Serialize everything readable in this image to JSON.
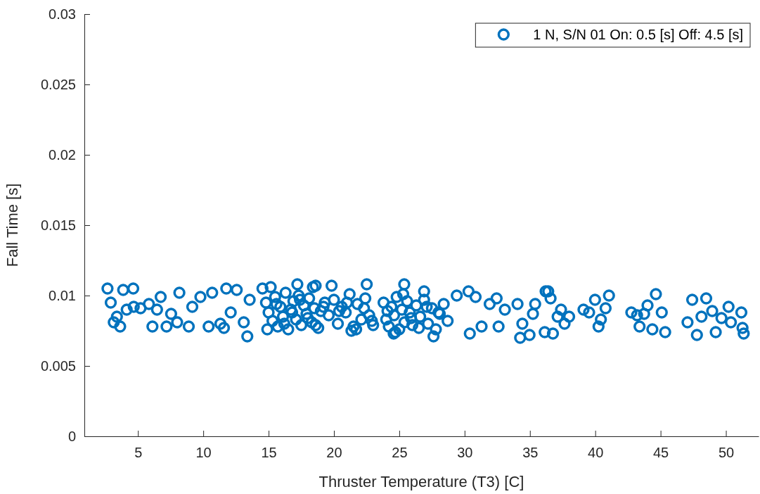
{
  "chart_data": {
    "type": "scatter",
    "xlabel": "Thruster Temperature (T3) [C]",
    "ylabel": "Fall Time [s]",
    "xlim": [
      0.9,
      52.5
    ],
    "xticks": [
      5,
      10,
      15,
      20,
      25,
      30,
      35,
      40,
      45,
      50
    ],
    "ylim": [
      0,
      0.03
    ],
    "yticks": [
      0,
      0.005,
      0.01,
      0.015,
      0.02,
      0.025,
      0.03
    ],
    "grid": false,
    "legend": "top right",
    "marker": "circle",
    "series": [
      {
        "name": "1 N, S/N 01 On: 0.5 [s] Off: 4.5 [s]",
        "color": "#0072bd",
        "x": [
          2.67,
          2.92,
          3.87,
          4.64,
          3.15,
          3.64,
          3.39,
          4.14,
          4.68,
          5.2,
          5.84,
          6.11,
          6.74,
          6.46,
          7.19,
          7.54,
          8.17,
          8.0,
          8.89,
          9.16,
          9.78,
          10.41,
          10.68,
          11.76,
          12.56,
          11.31,
          11.58,
          12.1,
          13.37,
          13.1,
          13.55,
          14.53,
          15.16,
          17.2,
          18.39,
          14.8,
          15.0,
          15.3,
          15.5,
          15.7,
          15.9,
          16.1,
          16.3,
          16.5,
          16.7,
          16.9,
          17.1,
          17.3,
          17.5,
          17.7,
          17.9,
          18.1,
          18.3,
          18.5,
          18.8,
          19.0,
          19.3,
          14.9,
          15.6,
          16.2,
          16.8,
          17.4,
          18.0,
          18.6,
          19.2,
          18.6,
          19.82,
          22.51,
          25.38,
          26.9,
          21.34,
          24.57,
          27.62,
          19.6,
          20.0,
          20.3,
          20.6,
          20.9,
          21.2,
          21.5,
          21.8,
          22.1,
          22.4,
          22.7,
          23.0,
          20.4,
          21.0,
          21.7,
          22.3,
          22.9,
          23.8,
          24.0,
          24.2,
          24.4,
          24.6,
          24.8,
          25.0,
          25.2,
          25.4,
          25.6,
          25.8,
          26.0,
          26.3,
          26.6,
          26.9,
          27.2,
          27.5,
          27.8,
          28.1,
          28.4,
          28.7,
          24.1,
          24.7,
          25.3,
          25.9,
          26.5,
          27.1,
          28.0,
          29.4,
          30.3,
          30.84,
          30.4,
          31.3,
          31.92,
          32.45,
          32.6,
          33.08,
          34.05,
          35.4,
          35.23,
          34.25,
          34.97,
          34.42,
          36.13,
          36.2,
          36.4,
          36.58,
          36.76,
          37.38,
          37.12,
          37.65,
          38.0,
          39.1,
          39.53,
          39.98,
          40.25,
          40.43,
          40.79,
          41.05,
          42.76,
          43.2,
          43.39,
          44.0,
          43.74,
          44.37,
          44.64,
          45.09,
          45.35,
          47.06,
          47.42,
          47.78,
          48.13,
          48.49,
          48.95,
          49.22,
          49.66,
          50.2,
          50.38,
          51.18,
          51.27,
          51.36
        ],
        "values": [
          0.0105,
          0.0095,
          0.0104,
          0.0105,
          0.0081,
          0.0078,
          0.0085,
          0.009,
          0.0092,
          0.0091,
          0.0094,
          0.0078,
          0.0099,
          0.009,
          0.0078,
          0.0087,
          0.0102,
          0.0081,
          0.0078,
          0.0092,
          0.0099,
          0.0078,
          0.0102,
          0.0105,
          0.0104,
          0.008,
          0.0077,
          0.0088,
          0.0071,
          0.0081,
          0.0097,
          0.0105,
          0.0106,
          0.0108,
          0.0106,
          0.0095,
          0.0088,
          0.0082,
          0.0099,
          0.0078,
          0.0092,
          0.0085,
          0.0102,
          0.0076,
          0.009,
          0.0096,
          0.0083,
          0.01,
          0.0079,
          0.0093,
          0.0087,
          0.0098,
          0.0081,
          0.0091,
          0.0077,
          0.0089,
          0.0095,
          0.0076,
          0.0094,
          0.008,
          0.0088,
          0.0097,
          0.0084,
          0.0079,
          0.0092,
          0.0107,
          0.0107,
          0.0108,
          0.0108,
          0.0103,
          0.0075,
          0.0073,
          0.0071,
          0.0086,
          0.0097,
          0.008,
          0.0092,
          0.0088,
          0.0101,
          0.0078,
          0.0094,
          0.0083,
          0.0098,
          0.0086,
          0.0079,
          0.0089,
          0.0095,
          0.0076,
          0.0091,
          0.0082,
          0.0095,
          0.0083,
          0.0078,
          0.0092,
          0.0086,
          0.0099,
          0.0076,
          0.009,
          0.0081,
          0.0096,
          0.0088,
          0.0079,
          0.0093,
          0.0085,
          0.0097,
          0.008,
          0.0091,
          0.0076,
          0.0087,
          0.0094,
          0.0082,
          0.0089,
          0.0074,
          0.0101,
          0.0084,
          0.0077,
          0.0092,
          0.0088,
          0.01,
          0.0103,
          0.0099,
          0.0073,
          0.0078,
          0.0094,
          0.0098,
          0.0078,
          0.009,
          0.0094,
          0.0094,
          0.0087,
          0.007,
          0.0072,
          0.008,
          0.0074,
          0.0103,
          0.0103,
          0.0098,
          0.0073,
          0.009,
          0.0085,
          0.008,
          0.0085,
          0.009,
          0.0088,
          0.0097,
          0.0078,
          0.0083,
          0.0091,
          0.01,
          0.0088,
          0.0086,
          0.0078,
          0.0093,
          0.0087,
          0.0076,
          0.0101,
          0.0088,
          0.0074,
          0.0081,
          0.0097,
          0.0072,
          0.0085,
          0.0098,
          0.0089,
          0.0074,
          0.0084,
          0.0092,
          0.0081,
          0.0088,
          0.0077,
          0.0073
        ]
      }
    ]
  }
}
